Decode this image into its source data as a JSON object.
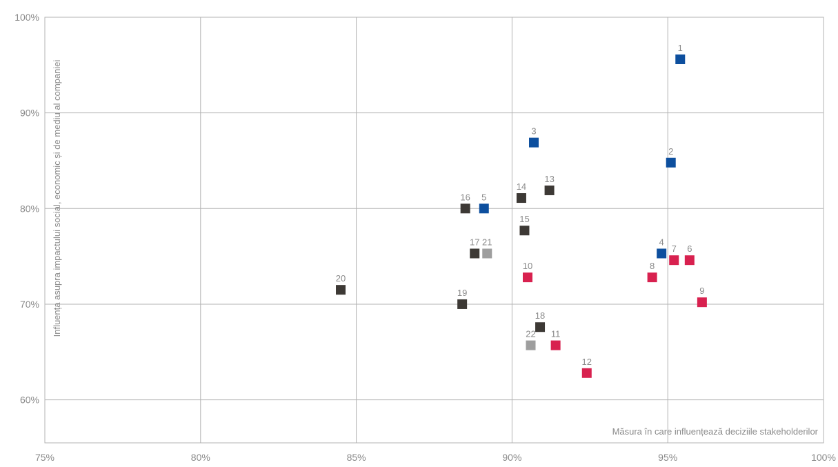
{
  "chart_data": {
    "type": "scatter",
    "title": "",
    "xlabel": "Măsura în care influențează deciziile stakeholderilor",
    "ylabel": "Influența asupra impactului social, economic și de mediu al companiei",
    "xlim": [
      75,
      100
    ],
    "ylim": [
      55.5,
      100
    ],
    "x_ticks": [
      75,
      80,
      85,
      90,
      95,
      100
    ],
    "x_tick_labels": [
      "75%",
      "80%",
      "85%",
      "90%",
      "95%",
      "100%"
    ],
    "y_ticks": [
      60,
      70,
      80,
      90,
      100
    ],
    "y_tick_labels": [
      "60%",
      "70%",
      "80%",
      "90%",
      "100%"
    ],
    "grid": true,
    "legend": "none",
    "colors": {
      "blue": "#0d4f9e",
      "red": "#d8214f",
      "dark": "#3d3935",
      "gray": "#9e9e9e",
      "grid": "#b3b3b3",
      "text": "#8a8a8a"
    },
    "points": [
      {
        "label": "1",
        "x": 95.4,
        "y": 95.6,
        "color": "blue"
      },
      {
        "label": "2",
        "x": 95.1,
        "y": 84.8,
        "color": "blue"
      },
      {
        "label": "3",
        "x": 90.7,
        "y": 86.9,
        "color": "blue"
      },
      {
        "label": "4",
        "x": 94.8,
        "y": 75.3,
        "color": "blue"
      },
      {
        "label": "5",
        "x": 89.1,
        "y": 80.0,
        "color": "blue"
      },
      {
        "label": "6",
        "x": 95.7,
        "y": 74.6,
        "color": "red"
      },
      {
        "label": "7",
        "x": 95.2,
        "y": 74.6,
        "color": "red"
      },
      {
        "label": "8",
        "x": 94.5,
        "y": 72.8,
        "color": "red"
      },
      {
        "label": "9",
        "x": 96.1,
        "y": 70.2,
        "color": "red"
      },
      {
        "label": "10",
        "x": 90.5,
        "y": 72.8,
        "color": "red"
      },
      {
        "label": "11",
        "x": 91.4,
        "y": 65.7,
        "color": "red"
      },
      {
        "label": "12",
        "x": 92.4,
        "y": 62.8,
        "color": "red"
      },
      {
        "label": "13",
        "x": 91.2,
        "y": 81.9,
        "color": "dark"
      },
      {
        "label": "14",
        "x": 90.3,
        "y": 81.1,
        "color": "dark"
      },
      {
        "label": "15",
        "x": 90.4,
        "y": 77.7,
        "color": "dark"
      },
      {
        "label": "16",
        "x": 88.5,
        "y": 80.0,
        "color": "dark"
      },
      {
        "label": "17",
        "x": 88.8,
        "y": 75.3,
        "color": "dark"
      },
      {
        "label": "18",
        "x": 90.9,
        "y": 67.6,
        "color": "dark"
      },
      {
        "label": "19",
        "x": 88.4,
        "y": 70.0,
        "color": "dark"
      },
      {
        "label": "20",
        "x": 84.5,
        "y": 71.5,
        "color": "dark"
      },
      {
        "label": "21",
        "x": 89.2,
        "y": 75.3,
        "color": "gray"
      },
      {
        "label": "22",
        "x": 90.6,
        "y": 65.7,
        "color": "gray"
      }
    ]
  }
}
